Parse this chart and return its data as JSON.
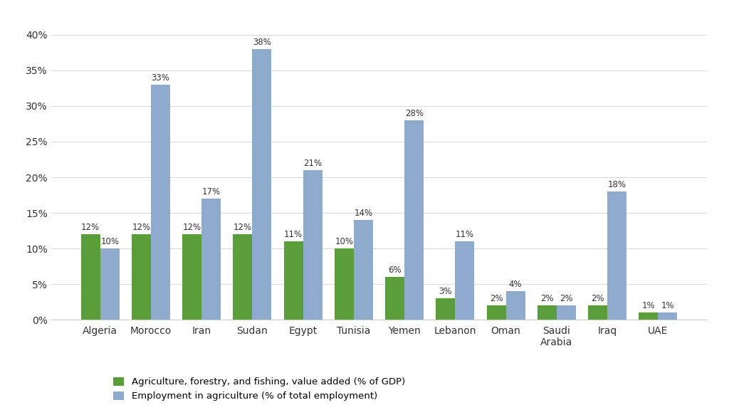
{
  "categories": [
    "Algeria",
    "Morocco",
    "Iran",
    "Sudan",
    "Egypt",
    "Tunisia",
    "Yemen",
    "Lebanon",
    "Oman",
    "Saudi\nArabia",
    "Iraq",
    "UAE"
  ],
  "agriculture_gdp": [
    12,
    12,
    12,
    12,
    11,
    10,
    6,
    3,
    2,
    2,
    2,
    1
  ],
  "employment_agri": [
    10,
    33,
    17,
    38,
    21,
    14,
    28,
    11,
    4,
    2,
    18,
    1
  ],
  "bar_color_green": "#5a9e3a",
  "bar_color_blue": "#8eaacc",
  "background_color": "#ffffff",
  "grid_color": "#d9d9d9",
  "ylim": [
    0,
    42
  ],
  "yticks": [
    0,
    5,
    10,
    15,
    20,
    25,
    30,
    35,
    40
  ],
  "ytick_labels": [
    "0%",
    "5%",
    "10%",
    "15%",
    "20%",
    "25%",
    "30%",
    "35%",
    "40%"
  ],
  "legend_green": "Agriculture, forestry, and fishing, value added (% of GDP)",
  "legend_blue": "Employment in agriculture (% of total employment)",
  "bar_width": 0.38,
  "label_fontsize": 8.5,
  "tick_fontsize": 10,
  "legend_fontsize": 9.5
}
